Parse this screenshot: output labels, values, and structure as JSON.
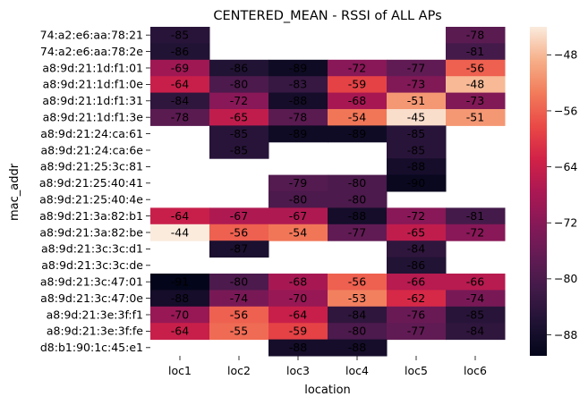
{
  "chart_data": {
    "type": "heatmap",
    "title": "CENTERED_MEAN - RSSI of ALL APs",
    "xlabel": "location",
    "ylabel": "mac_addr",
    "x": [
      "loc1",
      "loc2",
      "loc3",
      "loc4",
      "loc5",
      "loc6"
    ],
    "y": [
      "74:a2:e6:aa:78:21",
      "74:a2:e6:aa:78:2e",
      "a8:9d:21:1d:f1:01",
      "a8:9d:21:1d:f1:0e",
      "a8:9d:21:1d:f1:31",
      "a8:9d:21:1d:f1:3e",
      "a8:9d:21:24:ca:61",
      "a8:9d:21:24:ca:6e",
      "a8:9d:21:25:3c:81",
      "a8:9d:21:25:40:41",
      "a8:9d:21:25:40:4e",
      "a8:9d:21:3a:82:b1",
      "a8:9d:21:3a:82:be",
      "a8:9d:21:3c:3c:d1",
      "a8:9d:21:3c:3c:de",
      "a8:9d:21:3c:47:01",
      "a8:9d:21:3c:47:0e",
      "a8:9d:21:3e:3f:f1",
      "a8:9d:21:3e:3f:fe",
      "d8:b1:90:1c:45:e1"
    ],
    "values": [
      [
        -85,
        null,
        null,
        null,
        null,
        -78
      ],
      [
        -86,
        null,
        null,
        null,
        null,
        -81
      ],
      [
        -69,
        -86,
        -89,
        -72,
        -77,
        -56
      ],
      [
        -64,
        -80,
        -83,
        -59,
        -73,
        -48
      ],
      [
        -84,
        -72,
        -88,
        -68,
        -51,
        -73
      ],
      [
        -78,
        -65,
        -78,
        -54,
        -45,
        -51
      ],
      [
        null,
        -85,
        -89,
        -89,
        -85,
        null
      ],
      [
        null,
        -85,
        null,
        null,
        -85,
        null
      ],
      [
        null,
        null,
        null,
        null,
        -88,
        null
      ],
      [
        null,
        null,
        -79,
        -80,
        -90,
        null
      ],
      [
        null,
        null,
        -80,
        -80,
        null,
        null
      ],
      [
        -64,
        -67,
        -67,
        -88,
        -72,
        -81
      ],
      [
        -44,
        -56,
        -54,
        -77,
        -65,
        -72
      ],
      [
        null,
        -87,
        null,
        null,
        -84,
        null
      ],
      [
        null,
        null,
        null,
        null,
        -86,
        null
      ],
      [
        -91,
        -80,
        -68,
        -56,
        -66,
        -66
      ],
      [
        -88,
        -74,
        -70,
        -53,
        -62,
        -74
      ],
      [
        -70,
        -56,
        -64,
        -84,
        -76,
        -85
      ],
      [
        -64,
        -55,
        -59,
        -80,
        -77,
        -84
      ],
      [
        null,
        null,
        -88,
        -88,
        null,
        null
      ]
    ],
    "colorbar": {
      "ticks": [
        -48,
        -56,
        -64,
        -72,
        -80,
        -88
      ],
      "tick_labels": [
        "−48",
        "−56",
        "−64",
        "−72",
        "−80",
        "−88"
      ],
      "range": [
        -91,
        -44
      ],
      "colormap": "rocket"
    },
    "legend": "none"
  }
}
